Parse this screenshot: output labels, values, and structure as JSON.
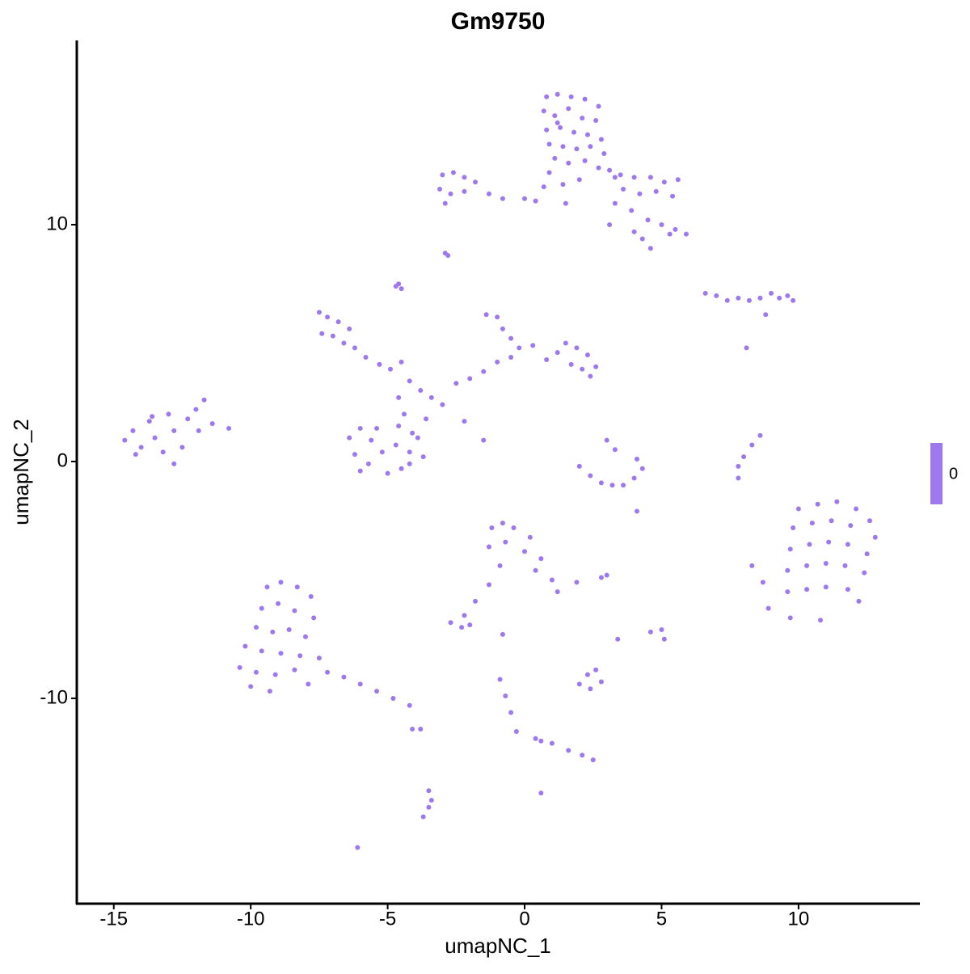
{
  "chart_data": {
    "type": "scatter",
    "title": "Gm9750",
    "x_label": "umapNC_1",
    "y_label": "umapNC_2",
    "color": "#9e79ee",
    "xlim": [
      -16.35,
      14.43
    ],
    "ylim": [
      -18.67,
      17.78
    ],
    "xticks": [
      -15,
      -10,
      -5,
      0,
      5,
      10
    ],
    "yticks": [
      -10,
      0,
      10
    ],
    "colorbar": {
      "ticks": [
        0
      ],
      "color": "#9e79ee"
    },
    "x": [
      0.8,
      1.2,
      1.7,
      2.2,
      2.7,
      0.7,
      1.1,
      1.6,
      2.1,
      2.6,
      0.8,
      1.3,
      1.8,
      2.3,
      2.8,
      0.9,
      1.4,
      1.9,
      2.4,
      2.9,
      1.1,
      1.6,
      2.2,
      2.7,
      3.1,
      0.9,
      1.4,
      2.0,
      3.3,
      1.2,
      3.5,
      4.0,
      4.6,
      5.1,
      5.6,
      3.6,
      4.2,
      4.8,
      5.4,
      3.3,
      3.9,
      4.5,
      5.0,
      5.5,
      5.9,
      4.3,
      4.6,
      5.3,
      3.1,
      4.0,
      -3.0,
      -2.6,
      -2.2,
      -1.8,
      -3.1,
      -2.7,
      -2.2,
      -2.9,
      -1.3,
      -0.8,
      0.0,
      0.4,
      0.7,
      1.5,
      -2.9,
      -2.8,
      -4.6,
      -4.5,
      -4.7,
      6.6,
      7.0,
      7.4,
      7.8,
      8.2,
      8.6,
      9.0,
      9.3,
      9.6,
      9.8,
      8.8,
      8.1,
      -7.5,
      -7.2,
      -6.8,
      -6.4,
      -7.4,
      -7.0,
      -6.6,
      -6.2,
      -5.8,
      -5.3,
      -4.9,
      -4.5,
      -4.2,
      -3.8,
      -3.4,
      -3.0,
      -4.6,
      -4.4,
      -3.6,
      -4.1,
      -4.6,
      -6.4,
      -6.0,
      -5.6,
      -6.2,
      -5.7,
      -5.2,
      -4.7,
      -4.2,
      -3.9,
      -4.5,
      -5.0,
      -6.0,
      -3.7,
      -4.2,
      -5.4,
      -2.5,
      -2.0,
      -1.5,
      -1.0,
      -0.5,
      -1.4,
      -1.0,
      -0.8,
      -0.5,
      -0.2,
      0.3,
      0.8,
      1.2,
      1.5,
      1.9,
      2.3,
      2.6,
      2.1,
      1.7,
      2.4,
      -2.2,
      -1.5,
      -14.6,
      -14.3,
      -14.0,
      -13.7,
      -13.5,
      -13.2,
      -13.0,
      -12.8,
      -12.5,
      -12.3,
      -12.0,
      -11.7,
      -11.9,
      -11.4,
      -10.8,
      -12.8,
      -14.2,
      -13.6,
      2.0,
      2.4,
      2.8,
      3.2,
      3.6,
      4.0,
      4.3,
      3.0,
      3.3,
      4.1,
      8.6,
      8.3,
      8.0,
      7.8,
      7.8,
      10.0,
      10.7,
      11.4,
      12.1,
      12.6,
      9.8,
      10.5,
      11.2,
      11.9,
      12.8,
      9.7,
      10.4,
      11.1,
      11.8,
      12.5,
      9.6,
      10.3,
      11.0,
      11.7,
      12.4,
      9.6,
      10.3,
      11.0,
      11.8,
      12.2,
      8.3,
      8.7,
      8.9,
      9.7,
      10.8,
      -1.2,
      -0.8,
      -0.4,
      0.2,
      -1.3,
      -0.7,
      0.0,
      0.6,
      -0.9,
      0.4,
      1.0,
      1.2,
      -1.3,
      -1.8,
      -2.2,
      -2.7,
      -2.3,
      -2.0,
      -9.4,
      -8.9,
      -8.3,
      -7.8,
      -9.6,
      -9.0,
      -8.4,
      -7.7,
      -9.8,
      -9.2,
      -8.6,
      -8.0,
      -10.2,
      -9.6,
      -8.9,
      -8.2,
      -7.5,
      -10.4,
      -9.8,
      -9.1,
      -8.4,
      -7.2,
      -6.6,
      -6.0,
      -5.4,
      -4.8,
      -4.2,
      -10.0,
      -9.3,
      -7.9,
      2.0,
      2.4,
      2.8,
      2.6,
      2.3,
      2.5,
      2.1,
      1.6,
      1.0,
      0.4,
      -0.3,
      -0.5,
      -0.7,
      -0.9,
      -3.5,
      -3.5,
      -3.7,
      -3.4,
      -6.1,
      0.6,
      -4.1,
      -3.8,
      5.0,
      5.1,
      4.6,
      3.4,
      2.8,
      3.0,
      1.9,
      4.1,
      -0.8,
      0.6
    ],
    "values": [
      15.4,
      15.5,
      15.4,
      15.3,
      15.0,
      14.8,
      14.6,
      14.9,
      14.5,
      14.4,
      14.0,
      14.1,
      13.9,
      13.8,
      13.6,
      13.4,
      13.3,
      13.2,
      13.3,
      13.0,
      12.8,
      12.6,
      12.7,
      12.4,
      12.3,
      12.2,
      11.7,
      11.9,
      12.0,
      14.3,
      12.1,
      12.0,
      12.0,
      11.8,
      11.9,
      11.5,
      11.3,
      11.4,
      11.2,
      10.9,
      10.6,
      10.2,
      10.0,
      9.8,
      9.6,
      9.4,
      9.0,
      9.6,
      10.0,
      9.7,
      12.1,
      12.2,
      12.0,
      11.8,
      11.5,
      11.3,
      11.4,
      10.9,
      11.3,
      11.1,
      11.1,
      11.0,
      11.6,
      10.9,
      8.8,
      8.7,
      7.5,
      7.3,
      7.4,
      7.1,
      7.0,
      6.8,
      6.9,
      6.8,
      6.9,
      7.1,
      6.9,
      7.0,
      6.8,
      6.2,
      4.8,
      6.3,
      6.1,
      5.9,
      5.6,
      5.4,
      5.3,
      5.0,
      4.8,
      4.4,
      4.1,
      3.9,
      4.2,
      3.4,
      3.0,
      2.7,
      2.4,
      2.7,
      2.0,
      1.8,
      1.2,
      1.5,
      1.0,
      1.4,
      0.9,
      0.3,
      -0.1,
      0.4,
      0.7,
      0.4,
      1.0,
      -0.3,
      -0.5,
      -0.4,
      0.2,
      -0.1,
      1.4,
      3.3,
      3.5,
      3.8,
      4.2,
      4.4,
      6.2,
      6.1,
      5.6,
      5.2,
      4.8,
      4.9,
      4.3,
      4.6,
      5.0,
      4.8,
      4.5,
      4.0,
      3.9,
      4.1,
      3.6,
      1.7,
      0.9,
      0.9,
      1.3,
      0.6,
      1.7,
      1.0,
      0.4,
      2.0,
      1.3,
      0.6,
      1.8,
      2.2,
      2.6,
      1.3,
      1.6,
      1.4,
      -0.1,
      0.3,
      1.9,
      -0.2,
      -0.6,
      -0.9,
      -1.0,
      -1.0,
      -0.7,
      -0.3,
      0.9,
      0.5,
      0.1,
      1.1,
      0.7,
      0.2,
      -0.2,
      -0.7,
      -2.0,
      -1.8,
      -1.7,
      -2.0,
      -2.5,
      -2.8,
      -2.6,
      -2.5,
      -2.7,
      -3.2,
      -3.7,
      -3.5,
      -3.4,
      -3.5,
      -3.9,
      -4.6,
      -4.4,
      -4.3,
      -4.4,
      -4.7,
      -5.5,
      -5.4,
      -5.3,
      -5.4,
      -5.9,
      -4.4,
      -5.1,
      -6.2,
      -6.6,
      -6.7,
      -2.8,
      -2.6,
      -2.8,
      -3.2,
      -3.6,
      -3.4,
      -3.8,
      -4.1,
      -4.4,
      -4.6,
      -5.0,
      -5.5,
      -5.2,
      -5.9,
      -6.5,
      -6.8,
      -7.0,
      -6.9,
      -5.3,
      -5.1,
      -5.3,
      -5.7,
      -6.2,
      -6.0,
      -6.3,
      -6.6,
      -7.0,
      -7.2,
      -7.1,
      -7.4,
      -7.8,
      -8.0,
      -8.1,
      -8.2,
      -8.3,
      -8.7,
      -8.9,
      -9.0,
      -8.8,
      -8.9,
      -9.1,
      -9.4,
      -9.7,
      -10.0,
      -10.3,
      -9.5,
      -9.7,
      -9.4,
      -9.4,
      -9.6,
      -9.3,
      -8.8,
      -9.0,
      -12.6,
      -12.4,
      -12.2,
      -11.9,
      -11.7,
      -11.4,
      -10.6,
      -9.9,
      -9.2,
      -13.9,
      -14.6,
      -15.0,
      -14.3,
      -16.3,
      -14.0,
      -11.3,
      -11.3,
      -7.1,
      -7.5,
      -7.2,
      -7.5,
      -4.9,
      -4.8,
      -5.1,
      -2.1,
      -7.3,
      -11.8
    ]
  }
}
